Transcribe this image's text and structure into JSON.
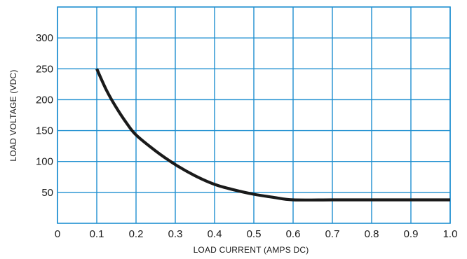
{
  "chart_data": {
    "type": "line",
    "title": "",
    "xlabel": "LOAD CURRENT (AMPS DC)",
    "ylabel": "LOAD VOLTAGE (VDC)",
    "xlim": [
      0,
      1.0
    ],
    "ylim": [
      0,
      350
    ],
    "x_ticks": [
      0,
      0.1,
      0.2,
      0.3,
      0.4,
      0.5,
      0.6,
      0.7,
      0.8,
      0.9,
      1.0
    ],
    "x_tick_labels": [
      "0",
      "0.1",
      "0.2",
      "0.3",
      "0.4",
      "0.5",
      "0.6",
      "0.7",
      "0.8",
      "0.9",
      "1.0"
    ],
    "y_ticks": [
      50,
      100,
      150,
      200,
      250,
      300
    ],
    "y_tick_labels": [
      "50",
      "100",
      "150",
      "200",
      "250",
      "300"
    ],
    "grid": true,
    "colors": {
      "grid": "#1e8fd0",
      "line": "#1a1a1a"
    },
    "series": [
      {
        "x": [
          0.1,
          0.125,
          0.15,
          0.175,
          0.2,
          0.25,
          0.3,
          0.35,
          0.4,
          0.45,
          0.5,
          0.55,
          0.6,
          0.7,
          0.8,
          0.9,
          1.0
        ],
        "values": [
          250,
          215,
          187,
          163,
          143,
          117,
          95,
          77,
          63,
          54,
          47,
          42,
          38,
          38,
          38,
          38,
          38
        ]
      }
    ]
  }
}
